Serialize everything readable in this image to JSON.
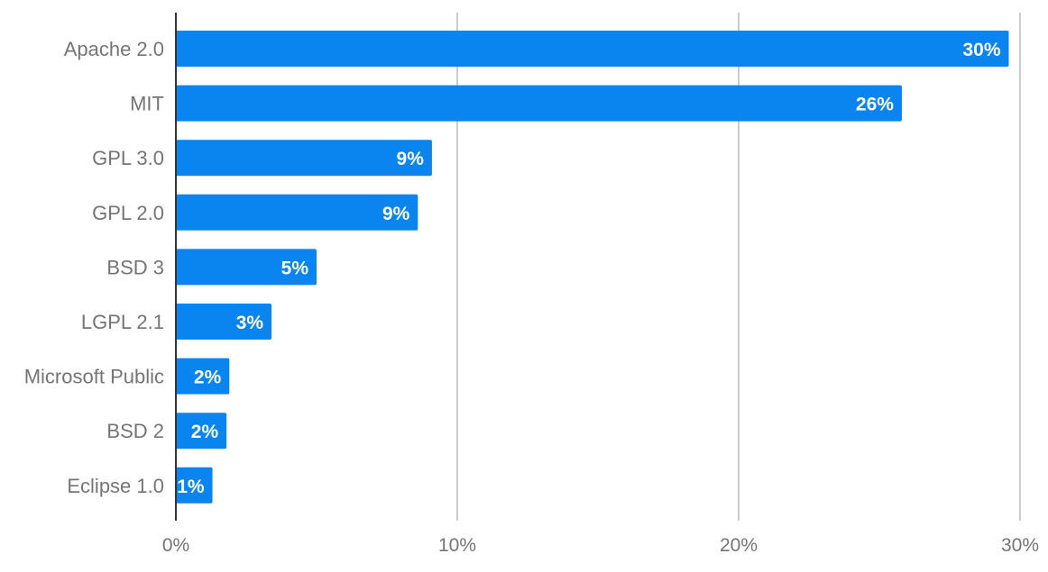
{
  "colors": {
    "bar": "#0a85ef",
    "grid": "#cccccc",
    "axis": "#333333",
    "label_text": "#757575",
    "data_label_text": "#ffffff"
  },
  "chart_data": {
    "type": "bar",
    "orientation": "horizontal",
    "title": "",
    "xlabel": "",
    "ylabel": "",
    "categories": [
      "Apache 2.0",
      "MIT",
      "GPL 3.0",
      "GPL 2.0",
      "BSD 3",
      "LGPL 2.1",
      "Microsoft Public",
      "BSD 2",
      "Eclipse 1.0"
    ],
    "values": [
      29.6,
      25.8,
      9.1,
      8.6,
      5.0,
      3.4,
      1.9,
      1.8,
      1.3
    ],
    "data_labels": [
      "30%",
      "26%",
      "9%",
      "9%",
      "5%",
      "3%",
      "2%",
      "2%",
      "1%"
    ],
    "xlim": [
      0,
      30
    ],
    "x_ticks": [
      0,
      10,
      20,
      30
    ],
    "x_tick_labels": [
      "0%",
      "10%",
      "20%",
      "30%"
    ],
    "grid": true,
    "legend": "none"
  }
}
